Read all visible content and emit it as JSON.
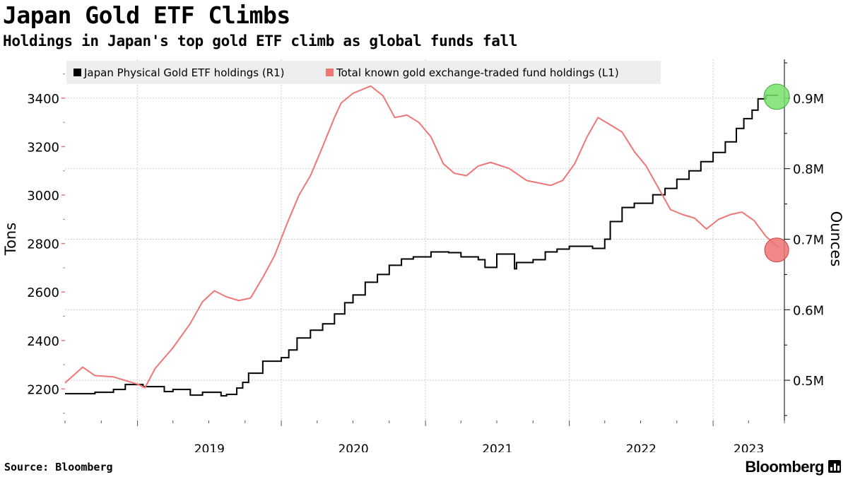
{
  "header": {
    "title": "Japan Gold ETF Climbs",
    "subtitle": "Holdings in Japan's top gold ETF climb as global funds fall"
  },
  "footer": {
    "source": "Source: Bloomberg",
    "brand": "Bloomberg"
  },
  "colors": {
    "japan": "#000000",
    "total": "#f07575",
    "grid": "#cccccc",
    "legend_bg": "#eeeeee",
    "marker_japan": "#77e26b",
    "marker_total": "#ef7373"
  },
  "chart_data": {
    "type": "line",
    "legend_position": "top-left",
    "grid": true,
    "x_ticks": [
      "2019",
      "2020",
      "2021",
      "2022",
      "2023"
    ],
    "x_tick_dates": [
      "2019-01-01",
      "2020-01-01",
      "2021-01-01",
      "2022-01-01",
      "2023-01-01"
    ],
    "xlim": [
      "2018-07-01",
      "2023-07-01"
    ],
    "left_axis": {
      "label": "Tons",
      "ticks": [
        2200,
        2400,
        2600,
        2800,
        3000,
        3200,
        3400
      ],
      "ylim": [
        2070,
        3560
      ]
    },
    "right_axis": {
      "label": "Ounces",
      "ticks": [
        0.5,
        0.6,
        0.7,
        0.8,
        0.9
      ],
      "tick_labels": [
        "0.5M",
        "0.6M",
        "0.7M",
        "0.8M",
        "0.9M"
      ],
      "ylim": [
        0.443,
        0.955
      ]
    },
    "series": [
      {
        "name": "Japan Physical Gold ETF holdings (R1)",
        "axis": "right",
        "style": "step",
        "points": [
          [
            "2018-07-01",
            0.481
          ],
          [
            "2018-09-15",
            0.483
          ],
          [
            "2018-11-01",
            0.487
          ],
          [
            "2018-12-01",
            0.494
          ],
          [
            "2019-01-15",
            0.491
          ],
          [
            "2019-03-10",
            0.484
          ],
          [
            "2019-04-01",
            0.487
          ],
          [
            "2019-05-15",
            0.479
          ],
          [
            "2019-06-15",
            0.483
          ],
          [
            "2019-08-01",
            0.478
          ],
          [
            "2019-08-15",
            0.48
          ],
          [
            "2019-09-10",
            0.489
          ],
          [
            "2019-09-25",
            0.497
          ],
          [
            "2019-10-10",
            0.51
          ],
          [
            "2019-11-15",
            0.527
          ],
          [
            "2020-01-01",
            0.532
          ],
          [
            "2020-01-20",
            0.543
          ],
          [
            "2020-02-10",
            0.56
          ],
          [
            "2020-03-15",
            0.571
          ],
          [
            "2020-04-15",
            0.58
          ],
          [
            "2020-05-15",
            0.594
          ],
          [
            "2020-06-10",
            0.61
          ],
          [
            "2020-07-01",
            0.621
          ],
          [
            "2020-08-01",
            0.639
          ],
          [
            "2020-09-01",
            0.65
          ],
          [
            "2020-10-01",
            0.663
          ],
          [
            "2020-11-01",
            0.672
          ],
          [
            "2020-12-01",
            0.675
          ],
          [
            "2021-01-15",
            0.682
          ],
          [
            "2021-03-01",
            0.681
          ],
          [
            "2021-04-01",
            0.675
          ],
          [
            "2021-05-15",
            0.671
          ],
          [
            "2021-06-01",
            0.66
          ],
          [
            "2021-07-01",
            0.679
          ],
          [
            "2021-08-15",
            0.658
          ],
          [
            "2021-08-20",
            0.667
          ],
          [
            "2021-10-01",
            0.671
          ],
          [
            "2021-11-01",
            0.682
          ],
          [
            "2021-12-01",
            0.686
          ],
          [
            "2022-01-01",
            0.69
          ],
          [
            "2022-03-01",
            0.687
          ],
          [
            "2022-04-01",
            0.7
          ],
          [
            "2022-04-15",
            0.725
          ],
          [
            "2022-05-15",
            0.745
          ],
          [
            "2022-06-15",
            0.751
          ],
          [
            "2022-08-01",
            0.763
          ],
          [
            "2022-09-01",
            0.772
          ],
          [
            "2022-10-01",
            0.785
          ],
          [
            "2022-11-01",
            0.797
          ],
          [
            "2022-12-01",
            0.81
          ],
          [
            "2023-01-01",
            0.823
          ],
          [
            "2023-02-01",
            0.838
          ],
          [
            "2023-03-01",
            0.857
          ],
          [
            "2023-03-20",
            0.871
          ],
          [
            "2023-04-10",
            0.883
          ],
          [
            "2023-04-25",
            0.899
          ],
          [
            "2023-05-15",
            0.904
          ],
          [
            "2023-06-15",
            0.904
          ]
        ]
      },
      {
        "name": "Total known gold exchange-traded fund holdings (L1)",
        "axis": "left",
        "style": "line",
        "points": [
          [
            "2018-07-01",
            2225
          ],
          [
            "2018-08-15",
            2290
          ],
          [
            "2018-09-15",
            2255
          ],
          [
            "2018-11-01",
            2250
          ],
          [
            "2018-12-01",
            2235
          ],
          [
            "2019-01-01",
            2220
          ],
          [
            "2019-01-20",
            2205
          ],
          [
            "2019-02-15",
            2285
          ],
          [
            "2019-04-01",
            2370
          ],
          [
            "2019-05-15",
            2470
          ],
          [
            "2019-06-15",
            2560
          ],
          [
            "2019-07-15",
            2605
          ],
          [
            "2019-08-15",
            2580
          ],
          [
            "2019-09-15",
            2565
          ],
          [
            "2019-10-15",
            2575
          ],
          [
            "2019-11-15",
            2660
          ],
          [
            "2019-12-15",
            2750
          ],
          [
            "2020-01-15",
            2880
          ],
          [
            "2020-02-15",
            3000
          ],
          [
            "2020-03-15",
            3080
          ],
          [
            "2020-04-15",
            3200
          ],
          [
            "2020-05-15",
            3320
          ],
          [
            "2020-06-01",
            3380
          ],
          [
            "2020-07-01",
            3420
          ],
          [
            "2020-08-15",
            3450
          ],
          [
            "2020-09-15",
            3410
          ],
          [
            "2020-10-15",
            3320
          ],
          [
            "2020-11-15",
            3330
          ],
          [
            "2020-12-15",
            3300
          ],
          [
            "2021-01-15",
            3240
          ],
          [
            "2021-02-15",
            3130
          ],
          [
            "2021-03-15",
            3090
          ],
          [
            "2021-04-15",
            3080
          ],
          [
            "2021-05-15",
            3120
          ],
          [
            "2021-06-15",
            3135
          ],
          [
            "2021-08-01",
            3110
          ],
          [
            "2021-09-15",
            3060
          ],
          [
            "2021-10-15",
            3050
          ],
          [
            "2021-11-15",
            3040
          ],
          [
            "2021-12-15",
            3060
          ],
          [
            "2022-01-15",
            3130
          ],
          [
            "2022-02-15",
            3240
          ],
          [
            "2022-03-15",
            3320
          ],
          [
            "2022-04-15",
            3290
          ],
          [
            "2022-05-15",
            3260
          ],
          [
            "2022-06-15",
            3180
          ],
          [
            "2022-07-15",
            3120
          ],
          [
            "2022-08-15",
            3030
          ],
          [
            "2022-09-15",
            2940
          ],
          [
            "2022-10-15",
            2920
          ],
          [
            "2022-11-15",
            2905
          ],
          [
            "2022-12-15",
            2860
          ],
          [
            "2023-01-15",
            2900
          ],
          [
            "2023-02-15",
            2920
          ],
          [
            "2023-03-15",
            2930
          ],
          [
            "2023-04-15",
            2895
          ],
          [
            "2023-05-15",
            2830
          ],
          [
            "2023-06-15",
            2785
          ]
        ]
      }
    ]
  }
}
